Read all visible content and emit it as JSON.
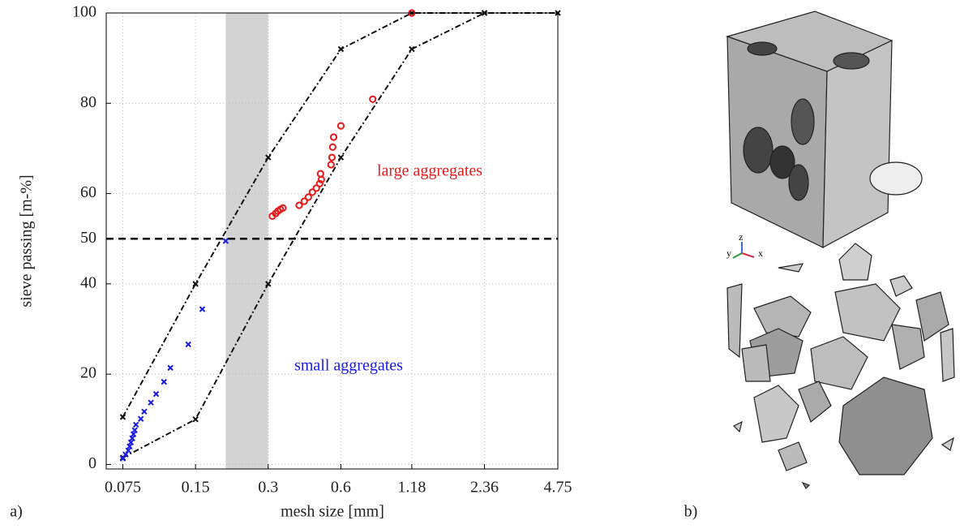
{
  "chart_data": {
    "type": "scatter",
    "xlabel": "mesh size [mm]",
    "ylabel": "sieve passing [m-%]",
    "xscale": "log",
    "xlim": [
      0.064,
      4.75
    ],
    "ylim": [
      -1,
      100
    ],
    "xticks": [
      0.075,
      0.15,
      0.3,
      0.6,
      1.18,
      2.36,
      4.75
    ],
    "yticks": [
      0,
      20,
      40,
      50,
      60,
      80,
      100
    ],
    "grid": true,
    "band": {
      "x": [
        0.2,
        0.3
      ],
      "color": "#d3d3d3"
    },
    "hline": {
      "y": 50,
      "color": "#000000"
    },
    "series": [
      {
        "mode": "line",
        "marker": "x",
        "color": "#111111",
        "x": [
          0.075,
          0.15,
          0.3,
          0.6,
          1.18,
          2.36,
          4.75
        ],
        "values": [
          10.5,
          40,
          68,
          92,
          100,
          100,
          100
        ]
      },
      {
        "mode": "line",
        "marker": "x",
        "color": "#111111",
        "x": [
          0.075,
          0.15,
          0.3,
          0.6,
          1.18,
          2.36
        ],
        "values": [
          1.5,
          10,
          40,
          68,
          92,
          100
        ]
      },
      {
        "mode": "markers",
        "marker": "x",
        "color": "#1a1ae6",
        "x": [
          0.075,
          0.077,
          0.079,
          0.08,
          0.081,
          0.082,
          0.083,
          0.084,
          0.085,
          0.089,
          0.092,
          0.098,
          0.103,
          0.111,
          0.118,
          0.14,
          0.16,
          0.2
        ],
        "values": [
          1.3,
          2.2,
          3.1,
          4.0,
          4.9,
          5.8,
          6.7,
          7.6,
          8.8,
          10.1,
          11.7,
          13.7,
          15.6,
          18.3,
          21.4,
          26.6,
          34.4,
          49.5
        ]
      },
      {
        "mode": "markers",
        "marker": "o",
        "color": "#e61a1a",
        "x": [
          0.312,
          0.322,
          0.329,
          0.337,
          0.345,
          0.403,
          0.423,
          0.44,
          0.457,
          0.475,
          0.49,
          0.498,
          0.494,
          0.546,
          0.551,
          0.555,
          0.56,
          0.6,
          0.813,
          1.18
        ],
        "values": [
          55.0,
          55.6,
          56.1,
          56.5,
          56.8,
          57.4,
          58.3,
          59.2,
          60.3,
          61.2,
          62.2,
          63.1,
          64.4,
          66.4,
          68.0,
          70.3,
          72.5,
          75.0,
          80.9,
          100
        ]
      }
    ],
    "annotations": [
      {
        "text": "large aggregates",
        "color": "#e61a1a"
      },
      {
        "text": "small aggregates",
        "color": "#1a1ae6"
      }
    ]
  },
  "panels": [
    "a)",
    "b)"
  ],
  "axes_triad": [
    "y",
    "z",
    "x"
  ]
}
